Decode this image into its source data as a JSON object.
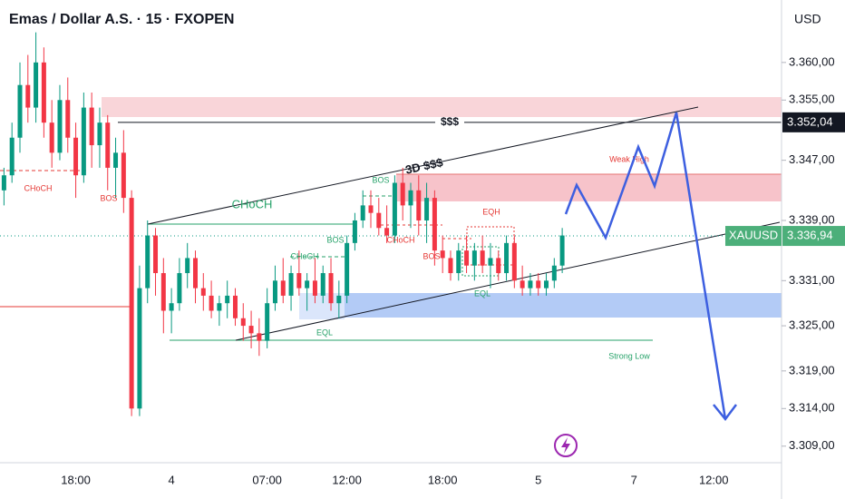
{
  "chart_data": {
    "type": "candlestick",
    "title": "Emas / Dollar A.S. · 15 · FXOPEN",
    "y_axis_label": "USD",
    "up_color": "#089981",
    "down_color": "#f23645",
    "categories": [
      null,
      null,
      null,
      null,
      null,
      null,
      null,
      null,
      null,
      "18:00",
      null,
      null,
      null,
      null,
      null,
      null,
      null,
      null,
      null,
      null,
      null,
      "4",
      null,
      null,
      null,
      null,
      null,
      null,
      null,
      null,
      null,
      null,
      null,
      "07:00",
      null,
      null,
      null,
      null,
      null,
      null,
      null,
      null,
      null,
      "12:00",
      null,
      null,
      null,
      null,
      null,
      null,
      null,
      null,
      null,
      null,
      null,
      "18:00",
      null,
      null,
      null,
      null,
      null,
      null,
      null,
      null,
      null,
      null,
      null,
      "5",
      null,
      null,
      null,
      null,
      null,
      null,
      null,
      null,
      null,
      null,
      null,
      "7",
      null,
      null,
      null,
      null,
      null,
      null,
      null,
      null,
      null,
      "12:00",
      null,
      null,
      null,
      null,
      null,
      null,
      null,
      null
    ],
    "open": [
      3343,
      3345,
      3350,
      3357,
      3354,
      3360,
      3352,
      3348,
      3355,
      3350,
      3345,
      3354,
      3349,
      3352,
      3346,
      3348,
      3342,
      3314,
      3330,
      3337,
      3332,
      3327,
      3328,
      3332,
      3334,
      3330,
      3329,
      3327,
      3328,
      3329,
      3326,
      3325,
      3324,
      3323,
      3328,
      3331,
      3329,
      3332,
      3330,
      3331,
      3329,
      3332,
      3328,
      3329,
      3336,
      3339,
      3341,
      3340,
      3338,
      3337,
      3344,
      3341,
      3343,
      3339,
      3342,
      3335,
      3334,
      3332,
      3335,
      3333,
      3335,
      3333,
      3334,
      3332,
      3336,
      3331,
      3330,
      3331,
      3330,
      3331,
      3333,
      null,
      null,
      null,
      null,
      null,
      null,
      null,
      null,
      null,
      null,
      null,
      null,
      null,
      null,
      null,
      null,
      null,
      null,
      null,
      null,
      null,
      null,
      null,
      null,
      null,
      null,
      null
    ],
    "high": [
      3346,
      3352,
      3360,
      3361,
      3364,
      3362,
      3355,
      3357,
      3358,
      3352,
      3356,
      3356,
      3354,
      3353,
      3350,
      3351,
      3343,
      3333,
      3339,
      3338,
      3334,
      3330,
      3334,
      3336,
      3335,
      3332,
      3331,
      3329,
      3331,
      3330,
      3328,
      3327,
      3326,
      3330,
      3333,
      3334,
      3333,
      3335,
      3332,
      3334,
      3333,
      3334,
      3331,
      3337,
      3340,
      3343,
      3343,
      3342,
      3341,
      3345,
      3346,
      3344,
      3345,
      3344,
      3343,
      3337,
      3335,
      3336,
      3337,
      3336,
      3337,
      3336,
      3335,
      3337,
      3337,
      3333,
      3332,
      3332,
      3332,
      3334,
      3338,
      null,
      null,
      null,
      null,
      null,
      null,
      null,
      null,
      null,
      null,
      null,
      null,
      null,
      null,
      null,
      null,
      null,
      null,
      null,
      null,
      null,
      null,
      null,
      null,
      null,
      null,
      null
    ],
    "low": [
      3341,
      3344,
      3348,
      3352,
      3352,
      3350,
      3346,
      3347,
      3348,
      3342,
      3344,
      3346,
      3346,
      3343,
      3342,
      3340,
      3313,
      3313,
      3328,
      3329,
      3324,
      3324,
      3327,
      3330,
      3328,
      3327,
      3326,
      3325,
      3326,
      3325,
      3323,
      3322,
      3321,
      3322,
      3327,
      3328,
      3327,
      3329,
      3327,
      3328,
      3328,
      3327,
      3326,
      3328,
      3335,
      3338,
      3338,
      3337,
      3336,
      3336,
      3339,
      3338,
      3337,
      3336,
      3333,
      3332,
      3331,
      3331,
      3332,
      3331,
      3332,
      3330,
      3331,
      3331,
      3330,
      3329,
      3329,
      3329,
      3329,
      3330,
      3332,
      null,
      null,
      null,
      null,
      null,
      null,
      null,
      null,
      null,
      null,
      null,
      null,
      null,
      null,
      null,
      null,
      null,
      null,
      null,
      null,
      null,
      null,
      null,
      null,
      null,
      null,
      null
    ],
    "close": [
      3345,
      3350,
      3357,
      3354,
      3360,
      3352,
      3348,
      3355,
      3350,
      3345,
      3354,
      3349,
      3352,
      3346,
      3348,
      3342,
      3314,
      3330,
      3337,
      3332,
      3327,
      3328,
      3332,
      3334,
      3330,
      3329,
      3327,
      3328,
      3329,
      3326,
      3325,
      3324,
      3323,
      3328,
      3331,
      3329,
      3332,
      3330,
      3331,
      3329,
      3332,
      3328,
      3329,
      3336,
      3339,
      3341,
      3340,
      3338,
      3337,
      3344,
      3341,
      3343,
      3339,
      3342,
      3335,
      3334,
      3332,
      3335,
      3333,
      3335,
      3333,
      3334,
      3332,
      3336,
      3331,
      3330,
      3331,
      3330,
      3331,
      3333,
      3337,
      null,
      null,
      null,
      null,
      null,
      null,
      null,
      null,
      null,
      null,
      null,
      null,
      null,
      null,
      null,
      null,
      null,
      null,
      null,
      null,
      null,
      null,
      null,
      null,
      null,
      null,
      null
    ],
    "ylim": [
      3306.8,
      3368.3
    ],
    "yticks": [
      {
        "value": 3360,
        "label": "3.360,00"
      },
      {
        "value": 3355,
        "label": "3.355,00"
      },
      {
        "value": 3347,
        "label": "3.347,00"
      },
      {
        "value": 3339,
        "label": "3.339,00"
      },
      {
        "value": 3331,
        "label": "3.331,00"
      },
      {
        "value": 3325,
        "label": "3.325,00"
      },
      {
        "value": 3319,
        "label": "3.319,00"
      },
      {
        "value": 3314,
        "label": "3.314,00"
      },
      {
        "value": 3309,
        "label": "3.309,00"
      }
    ],
    "level": {
      "text": "$$$",
      "value": 3352.04,
      "label": "3.352,04"
    },
    "last_price": {
      "name": "XAUUSD",
      "value": 3336.94,
      "label": "3.336,94"
    },
    "annotations": [
      "CHoCH",
      "BOS",
      "CHoCH",
      "3D $$$",
      "BOS",
      "BOS",
      "CHoCH",
      "EQL",
      "CHoCH",
      "BOS",
      "EQH",
      "Weak High",
      "EQL",
      "Strong Low"
    ]
  }
}
